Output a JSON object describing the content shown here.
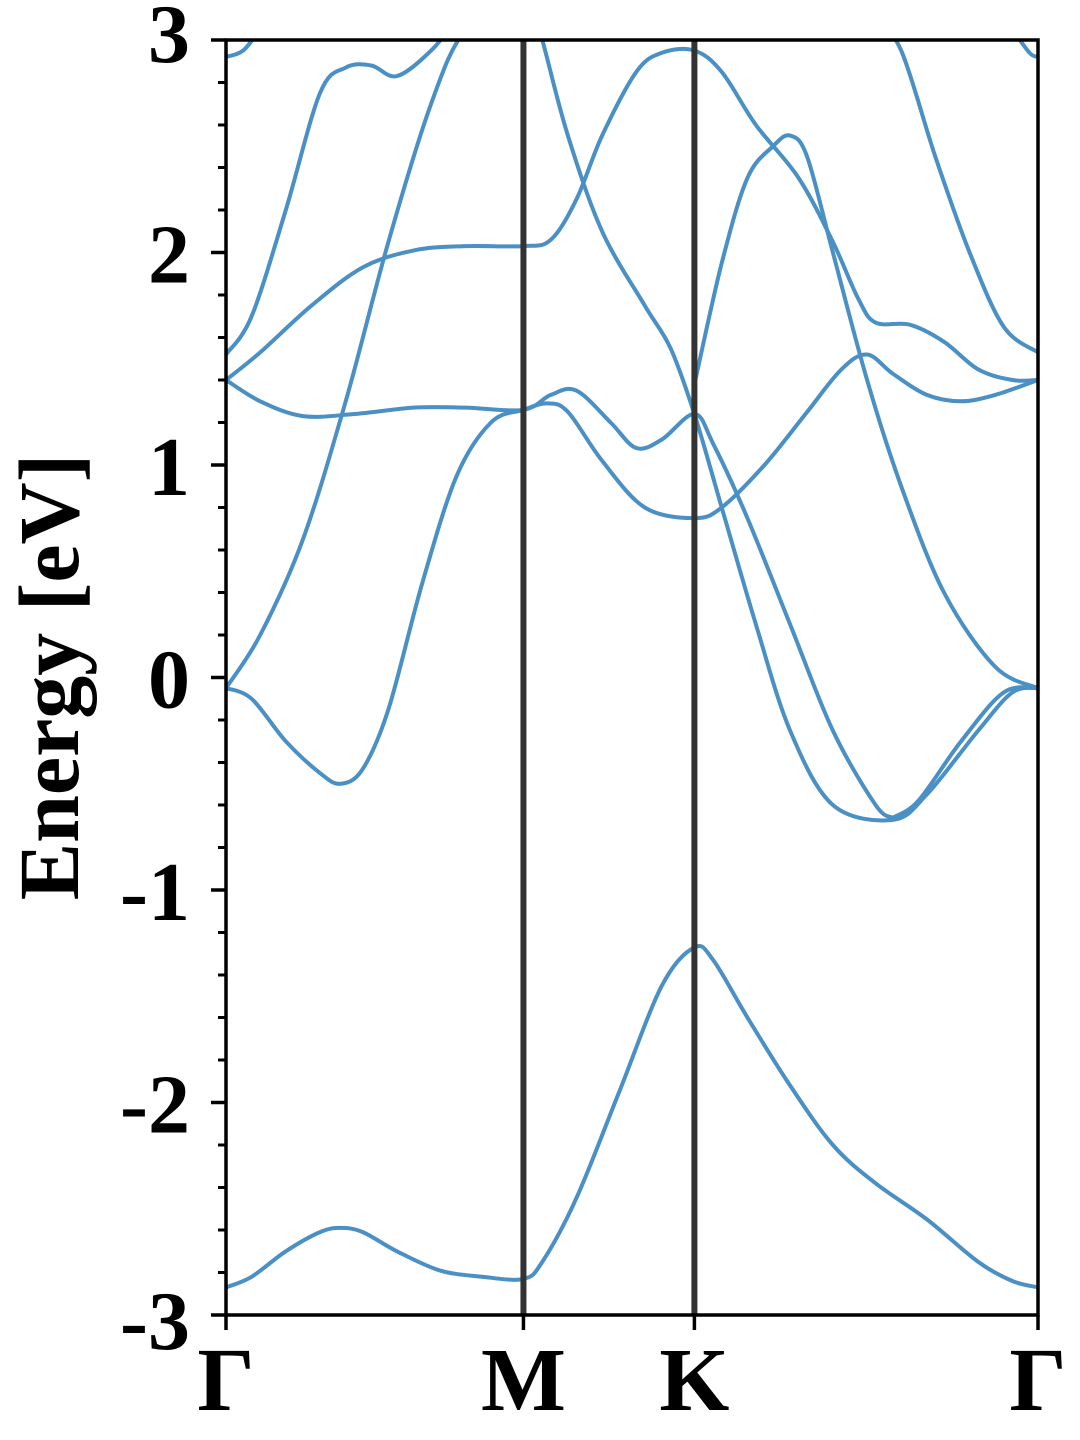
{
  "chart_data": {
    "type": "line",
    "title": "",
    "xlabel": "",
    "ylabel": "Energy [eV]",
    "ylim": [
      -3,
      3
    ],
    "y_ticks": [
      "-3",
      "-2",
      "-1",
      "0",
      "1",
      "2",
      "3"
    ],
    "y_minor_step": 0.2,
    "x_range": [
      0,
      4.75
    ],
    "high_symmetry_points": [
      {
        "label": "Γ",
        "x": 0.0
      },
      {
        "label": "M",
        "x": 1.74
      },
      {
        "label": "K",
        "x": 2.74
      },
      {
        "label": "Γ",
        "x": 4.75
      }
    ],
    "grid": false,
    "colors": {
      "bands": "#4a90c4",
      "divider": "#333333",
      "frame": "#000000"
    },
    "series": [
      {
        "values": [
          [
            0.0,
            -2.87
          ],
          [
            0.15,
            -2.82
          ],
          [
            0.35,
            -2.7
          ],
          [
            0.55,
            -2.61
          ],
          [
            0.67,
            -2.59
          ],
          [
            0.8,
            -2.61
          ],
          [
            1.0,
            -2.7
          ],
          [
            1.25,
            -2.79
          ],
          [
            1.5,
            -2.82
          ],
          [
            1.74,
            -2.83
          ],
          [
            1.85,
            -2.75
          ],
          [
            2.05,
            -2.45
          ],
          [
            2.3,
            -1.95
          ],
          [
            2.55,
            -1.45
          ],
          [
            2.74,
            -1.27
          ],
          [
            2.85,
            -1.33
          ],
          [
            3.05,
            -1.6
          ],
          [
            3.3,
            -1.92
          ],
          [
            3.55,
            -2.2
          ],
          [
            3.8,
            -2.38
          ],
          [
            4.1,
            -2.55
          ],
          [
            4.4,
            -2.75
          ],
          [
            4.6,
            -2.84
          ],
          [
            4.75,
            -2.87
          ]
        ]
      },
      {
        "values": [
          [
            0.0,
            -0.05
          ],
          [
            0.15,
            -0.1
          ],
          [
            0.35,
            -0.3
          ],
          [
            0.55,
            -0.45
          ],
          [
            0.67,
            -0.5
          ],
          [
            0.8,
            -0.43
          ],
          [
            0.95,
            -0.15
          ],
          [
            1.15,
            0.45
          ],
          [
            1.35,
            0.95
          ],
          [
            1.55,
            1.2
          ],
          [
            1.74,
            1.26
          ],
          [
            1.88,
            1.29
          ],
          [
            2.0,
            1.25
          ],
          [
            2.2,
            1.02
          ],
          [
            2.45,
            0.8
          ],
          [
            2.74,
            0.75
          ],
          [
            2.9,
            0.8
          ],
          [
            3.15,
            1.0
          ],
          [
            3.4,
            1.25
          ],
          [
            3.6,
            1.45
          ],
          [
            3.75,
            1.52
          ],
          [
            3.9,
            1.43
          ],
          [
            4.1,
            1.33
          ],
          [
            4.3,
            1.3
          ],
          [
            4.5,
            1.33
          ],
          [
            4.75,
            1.4
          ]
        ]
      },
      {
        "values": [
          [
            0.0,
            -0.05
          ],
          [
            0.2,
            0.2
          ],
          [
            0.45,
            0.65
          ],
          [
            0.7,
            1.3
          ],
          [
            0.95,
            2.05
          ],
          [
            1.2,
            2.7
          ],
          [
            1.4,
            3.05
          ],
          [
            1.74,
            3.3
          ]
        ]
      },
      {
        "values": [
          [
            1.74,
            3.3
          ],
          [
            1.85,
            3.0
          ],
          [
            2.0,
            2.55
          ],
          [
            2.2,
            2.1
          ],
          [
            2.45,
            1.75
          ],
          [
            2.6,
            1.55
          ],
          [
            2.74,
            1.24
          ],
          [
            2.9,
            0.8
          ],
          [
            3.1,
            0.25
          ],
          [
            3.3,
            -0.25
          ],
          [
            3.55,
            -0.6
          ],
          [
            3.9,
            -0.67
          ],
          [
            4.1,
            -0.55
          ],
          [
            4.4,
            -0.25
          ],
          [
            4.6,
            -0.07
          ],
          [
            4.75,
            -0.05
          ]
        ]
      },
      {
        "values": [
          [
            0.0,
            1.4
          ],
          [
            0.2,
            1.3
          ],
          [
            0.45,
            1.23
          ],
          [
            0.75,
            1.24
          ],
          [
            1.1,
            1.27
          ],
          [
            1.4,
            1.27
          ],
          [
            1.74,
            1.26
          ],
          [
            1.9,
            1.33
          ],
          [
            2.05,
            1.35
          ],
          [
            2.25,
            1.2
          ],
          [
            2.4,
            1.08
          ],
          [
            2.55,
            1.12
          ],
          [
            2.74,
            1.24
          ],
          [
            2.85,
            1.1
          ],
          [
            3.05,
            0.75
          ],
          [
            3.3,
            0.25
          ],
          [
            3.55,
            -0.25
          ],
          [
            3.8,
            -0.6
          ],
          [
            3.9,
            -0.66
          ]
        ]
      },
      {
        "values": [
          [
            3.9,
            -0.66
          ],
          [
            4.05,
            -0.58
          ],
          [
            4.3,
            -0.3
          ],
          [
            4.55,
            -0.07
          ],
          [
            4.75,
            -0.05
          ]
        ]
      },
      {
        "values": [
          [
            0.0,
            1.4
          ],
          [
            0.2,
            1.53
          ],
          [
            0.5,
            1.75
          ],
          [
            0.8,
            1.93
          ],
          [
            1.1,
            2.01
          ],
          [
            1.4,
            2.03
          ],
          [
            1.74,
            2.03
          ],
          [
            1.9,
            2.06
          ],
          [
            2.05,
            2.25
          ],
          [
            2.2,
            2.55
          ],
          [
            2.4,
            2.85
          ],
          [
            2.55,
            2.94
          ],
          [
            2.74,
            2.95
          ],
          [
            2.9,
            2.85
          ],
          [
            3.1,
            2.6
          ],
          [
            3.35,
            2.35
          ],
          [
            3.55,
            2.05
          ],
          [
            3.7,
            1.78
          ],
          [
            3.8,
            1.67
          ],
          [
            4.0,
            1.66
          ],
          [
            4.2,
            1.58
          ],
          [
            4.4,
            1.45
          ],
          [
            4.6,
            1.4
          ],
          [
            4.75,
            1.4
          ]
        ]
      },
      {
        "values": [
          [
            0.0,
            1.52
          ],
          [
            0.15,
            1.7
          ],
          [
            0.35,
            2.2
          ],
          [
            0.55,
            2.75
          ],
          [
            0.7,
            2.87
          ],
          [
            0.85,
            2.88
          ],
          [
            1.0,
            2.83
          ],
          [
            1.2,
            2.95
          ],
          [
            1.35,
            3.1
          ]
        ]
      },
      {
        "values": [
          [
            2.74,
            1.38
          ],
          [
            2.9,
            1.95
          ],
          [
            3.05,
            2.35
          ],
          [
            3.2,
            2.5
          ],
          [
            3.3,
            2.55
          ],
          [
            3.4,
            2.45
          ],
          [
            3.55,
            2.0
          ],
          [
            3.75,
            1.4
          ],
          [
            3.95,
            0.9
          ],
          [
            4.2,
            0.4
          ],
          [
            4.5,
            0.05
          ],
          [
            4.75,
            -0.05
          ]
        ]
      },
      {
        "values": [
          [
            3.8,
            3.1
          ],
          [
            3.95,
            2.95
          ],
          [
            4.15,
            2.45
          ],
          [
            4.35,
            2.0
          ],
          [
            4.55,
            1.65
          ],
          [
            4.75,
            1.53
          ]
        ]
      },
      {
        "values": [
          [
            0.0,
            2.92
          ],
          [
            0.1,
            2.95
          ],
          [
            0.2,
            3.05
          ]
        ]
      },
      {
        "values": [
          [
            4.6,
            3.05
          ],
          [
            4.7,
            2.94
          ],
          [
            4.75,
            2.92
          ]
        ]
      }
    ]
  }
}
